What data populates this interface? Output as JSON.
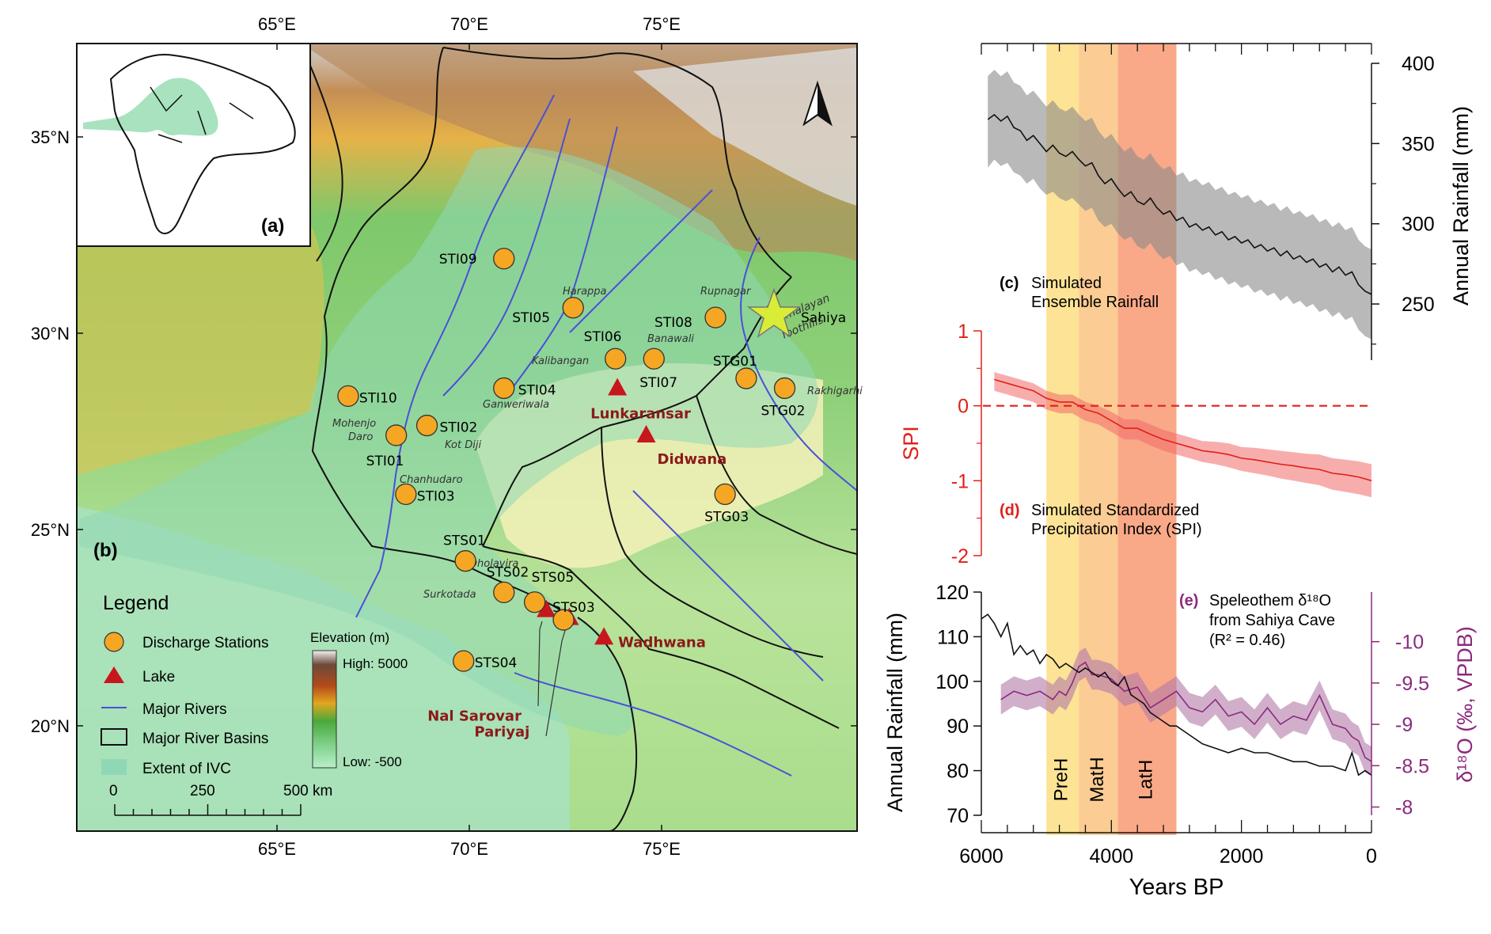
{
  "map": {
    "lon_ticks": [
      {
        "lon": 65,
        "label": "65°E"
      },
      {
        "lon": 70,
        "label": "70°E"
      },
      {
        "lon": 75,
        "label": "75°E"
      }
    ],
    "lat_ticks": [
      {
        "lat": 35,
        "label": "35°N"
      },
      {
        "lat": 30,
        "label": "30°N"
      },
      {
        "lat": 25,
        "label": "25°N"
      },
      {
        "lat": 20,
        "label": "20°N"
      }
    ],
    "panel_a": "(a)",
    "panel_b": "(b)",
    "stations": [
      {
        "id": "STI09",
        "lon": 70.9,
        "lat": 31.9
      },
      {
        "id": "STI05",
        "lon": 72.7,
        "lat": 30.65
      },
      {
        "id": "STI08",
        "lon": 76.4,
        "lat": 30.4
      },
      {
        "id": "STI06",
        "lon": 73.8,
        "lat": 29.35
      },
      {
        "id": "STI07",
        "lon": 74.8,
        "lat": 29.35
      },
      {
        "id": "STG01",
        "lon": 77.2,
        "lat": 28.85
      },
      {
        "id": "STG02",
        "lon": 78.2,
        "lat": 28.6
      },
      {
        "id": "STI04",
        "lon": 70.9,
        "lat": 28.6
      },
      {
        "id": "STI10",
        "lon": 66.85,
        "lat": 28.4
      },
      {
        "id": "STI02",
        "lon": 68.9,
        "lat": 27.65
      },
      {
        "id": "STI01",
        "lon": 68.1,
        "lat": 27.4
      },
      {
        "id": "STI03",
        "lon": 68.35,
        "lat": 25.9
      },
      {
        "id": "STG03",
        "lon": 76.65,
        "lat": 25.9
      },
      {
        "id": "STS01",
        "lon": 69.9,
        "lat": 24.2
      },
      {
        "id": "STS02",
        "lon": 70.9,
        "lat": 23.4
      },
      {
        "id": "STS05",
        "lon": 71.7,
        "lat": 23.15
      },
      {
        "id": "STS03",
        "lon": 72.45,
        "lat": 22.7
      },
      {
        "id": "STS04",
        "lon": 69.85,
        "lat": 21.65
      }
    ],
    "lakes": [
      {
        "name": "Lunkaransar",
        "lon": 73.85,
        "lat": 28.6
      },
      {
        "name": "Didwana",
        "lon": 74.6,
        "lat": 27.4
      },
      {
        "name": "Wadhwana",
        "lon": 73.5,
        "lat": 22.25
      },
      {
        "name": "Nal Sarovar",
        "lon": 72.0,
        "lat": 22.95
      },
      {
        "name": "Pariyaj",
        "lon": 72.6,
        "lat": 22.75
      }
    ],
    "sites": [
      "Harappa",
      "Rupnagar",
      "Banawali",
      "Kalibangan",
      "Ganweriwala",
      "Rakhigarhi",
      "Mohenjo",
      "Daro",
      "Kot Diji",
      "Chanhudaro",
      "Dholavira",
      "Surkotada"
    ],
    "sahiya_label": "Sahiya",
    "foothills_1": "Himalayan",
    "foothills_2": "foothills",
    "legend": {
      "title": "Legend",
      "items": [
        "Discharge Stations",
        "Lake",
        "Major Rivers",
        "Major River Basins",
        "Extent of IVC"
      ],
      "elevation_title": "Elevation (m)",
      "elevation_high": "High: 5000",
      "elevation_low": "Low: -500",
      "scale_labels": [
        "0",
        "250",
        "500 km"
      ]
    },
    "colors": {
      "station": "#F5A623",
      "lake": "#C8161D",
      "river": "#4A50D8",
      "ivc": "#8fd8b7",
      "lake_label": "#8B1A1A"
    }
  },
  "chart_data": [
    {
      "type": "line",
      "panel": "(c)",
      "title_lines": [
        "Simulated",
        "Ensemble Rainfall"
      ],
      "ylabel": "Annual Rainfall (mm)",
      "ylim": [
        215,
        400
      ],
      "yticks": [
        250,
        300,
        350,
        400
      ],
      "x": [
        5900,
        5800,
        5700,
        5600,
        5500,
        5400,
        5300,
        5200,
        5100,
        5000,
        4900,
        4800,
        4700,
        4600,
        4500,
        4400,
        4300,
        4200,
        4100,
        4000,
        3900,
        3800,
        3700,
        3600,
        3500,
        3400,
        3300,
        3200,
        3100,
        3000,
        2900,
        2800,
        2700,
        2600,
        2500,
        2400,
        2300,
        2200,
        2100,
        2000,
        1900,
        1800,
        1700,
        1600,
        1500,
        1400,
        1300,
        1200,
        1100,
        1000,
        900,
        800,
        700,
        600,
        500,
        400,
        300,
        200,
        100,
        0
      ],
      "series": [
        {
          "values": [
            365,
            368,
            364,
            367,
            360,
            358,
            352,
            355,
            350,
            345,
            349,
            344,
            342,
            345,
            340,
            336,
            338,
            330,
            325,
            328,
            322,
            317,
            320,
            314,
            312,
            316,
            310,
            306,
            308,
            302,
            304,
            298,
            300,
            296,
            298,
            293,
            295,
            290,
            292,
            288,
            290,
            285,
            287,
            283,
            285,
            280,
            283,
            278,
            280,
            276,
            278,
            273,
            275,
            270,
            273,
            268,
            270,
            262,
            258,
            256
          ],
          "lower": [
            335,
            340,
            336,
            338,
            332,
            330,
            325,
            328,
            322,
            318,
            320,
            316,
            314,
            316,
            312,
            308,
            310,
            302,
            298,
            300,
            294,
            290,
            292,
            286,
            284,
            288,
            282,
            278,
            280,
            274,
            276,
            270,
            272,
            268,
            270,
            265,
            267,
            262,
            264,
            260,
            262,
            257,
            259,
            255,
            257,
            252,
            255,
            250,
            252,
            248,
            250,
            245,
            247,
            242,
            245,
            240,
            242,
            234,
            230,
            228
          ],
          "upper": [
            392,
            396,
            392,
            395,
            388,
            386,
            380,
            383,
            378,
            373,
            377,
            372,
            370,
            373,
            368,
            364,
            366,
            358,
            353,
            356,
            350,
            345,
            348,
            342,
            340,
            344,
            338,
            334,
            336,
            330,
            332,
            326,
            328,
            324,
            326,
            321,
            323,
            318,
            320,
            316,
            318,
            313,
            315,
            311,
            313,
            308,
            311,
            306,
            308,
            304,
            306,
            301,
            303,
            298,
            301,
            296,
            298,
            290,
            286,
            284
          ]
        }
      ]
    },
    {
      "type": "line",
      "panel": "(d)",
      "title_lines": [
        "Simulated Standardized",
        "Precipitation Index (SPI)"
      ],
      "ylabel": "SPI",
      "ylim": [
        -2,
        1
      ],
      "yticks": [
        -2,
        -1,
        0,
        1
      ],
      "x": [
        5800,
        5600,
        5400,
        5200,
        5000,
        4800,
        4600,
        4400,
        4200,
        4000,
        3800,
        3600,
        3400,
        3200,
        3000,
        2800,
        2600,
        2400,
        2200,
        2000,
        1800,
        1600,
        1400,
        1200,
        1000,
        800,
        600,
        400,
        200,
        0
      ],
      "series": [
        {
          "values": [
            0.35,
            0.3,
            0.25,
            0.2,
            0.1,
            0.05,
            0.05,
            -0.05,
            -0.1,
            -0.2,
            -0.3,
            -0.3,
            -0.38,
            -0.45,
            -0.5,
            -0.55,
            -0.6,
            -0.62,
            -0.65,
            -0.7,
            -0.72,
            -0.75,
            -0.78,
            -0.8,
            -0.83,
            -0.85,
            -0.9,
            -0.92,
            -0.95,
            -1.0
          ],
          "lower": [
            0.2,
            0.15,
            0.1,
            0.05,
            -0.05,
            -0.1,
            -0.1,
            -0.2,
            -0.25,
            -0.35,
            -0.45,
            -0.45,
            -0.53,
            -0.6,
            -0.65,
            -0.7,
            -0.75,
            -0.78,
            -0.82,
            -0.87,
            -0.9,
            -0.93,
            -0.97,
            -1.0,
            -1.03,
            -1.06,
            -1.12,
            -1.15,
            -1.18,
            -1.22
          ],
          "upper": [
            0.45,
            0.4,
            0.35,
            0.3,
            0.2,
            0.15,
            0.15,
            0.05,
            0.0,
            -0.08,
            -0.18,
            -0.18,
            -0.25,
            -0.32,
            -0.37,
            -0.42,
            -0.47,
            -0.48,
            -0.5,
            -0.55,
            -0.56,
            -0.58,
            -0.6,
            -0.62,
            -0.64,
            -0.65,
            -0.7,
            -0.72,
            -0.74,
            -0.78
          ]
        }
      ],
      "reference_line": 0
    },
    {
      "type": "line",
      "panel": "(e)",
      "title_lines": [
        "Speleothem δ¹⁸O",
        "from Sahiya Cave",
        "(R² = 0.46)"
      ],
      "ylabel_left": "Annual Rainfall (mm)",
      "ylabel_right": "δ¹⁸O (‰, VPDB)",
      "ylim_left": [
        70,
        120
      ],
      "yticks_left": [
        70,
        80,
        90,
        100,
        110,
        120
      ],
      "ylim_right": [
        -7.9,
        -10.6
      ],
      "yticks_right": [
        -8,
        -8.5,
        -9,
        -9.5,
        -10
      ],
      "ytick_labels_right": [
        "-8",
        "-8.5",
        "-9",
        "-9.5",
        "-10"
      ],
      "series_rainfall": {
        "x": [
          6000,
          5900,
          5800,
          5700,
          5600,
          5500,
          5400,
          5300,
          5200,
          5100,
          5000,
          4900,
          4800,
          4700,
          4600,
          4500,
          4400,
          4300,
          4200,
          4100,
          4000,
          3900,
          3800,
          3700,
          3600,
          3500,
          3400,
          3300,
          3200,
          3100,
          3000,
          2800,
          2600,
          2400,
          2200,
          2000,
          1800,
          1600,
          1400,
          1200,
          1000,
          800,
          600,
          400,
          300,
          200,
          100,
          0
        ],
        "values": [
          114,
          115,
          113,
          110,
          113,
          106,
          108,
          106,
          107,
          104,
          106,
          105,
          103,
          104,
          103,
          102,
          103,
          102,
          101,
          102,
          100,
          99,
          101,
          97,
          96,
          95,
          93,
          92,
          91,
          90,
          90,
          88,
          86,
          85,
          84,
          85,
          84,
          84,
          83,
          82,
          82,
          81,
          81,
          80,
          84,
          79,
          80,
          79
        ]
      },
      "series_d18o": {
        "x": [
          5700,
          5500,
          5300,
          5100,
          5000,
          4900,
          4800,
          4700,
          4600,
          4500,
          4400,
          4300,
          4200,
          4000,
          3800,
          3600,
          3400,
          3200,
          3000,
          2800,
          2600,
          2400,
          2200,
          2000,
          1800,
          1600,
          1400,
          1200,
          1000,
          800,
          600,
          400,
          300,
          200,
          100,
          0
        ],
        "values": [
          -9.3,
          -9.4,
          -9.35,
          -9.4,
          -9.35,
          -9.3,
          -9.4,
          -9.35,
          -9.5,
          -9.7,
          -9.75,
          -9.6,
          -9.6,
          -9.55,
          -9.4,
          -9.45,
          -9.2,
          -9.3,
          -9.4,
          -9.2,
          -9.15,
          -9.3,
          -9.1,
          -9.15,
          -9.0,
          -9.2,
          -9.0,
          -9.1,
          -9.05,
          -9.35,
          -9.0,
          -8.95,
          -8.85,
          -8.8,
          -8.6,
          -8.55
        ],
        "band": 0.18
      },
      "colors": {
        "rainfall": "#111111",
        "d18o": "#8B2A7E",
        "band": "#b27aa8"
      }
    }
  ],
  "time_axis": {
    "xlabel": "Years BP",
    "xlim": [
      6000,
      0
    ],
    "xticks": [
      6000,
      4000,
      2000,
      0
    ],
    "xtick_labels": [
      "6000",
      "4000",
      "2000",
      "0"
    ]
  },
  "phases": [
    {
      "label": "PreH",
      "from": 5000,
      "to": 4500,
      "color": "#FDE08A"
    },
    {
      "label": "MatH",
      "from": 4500,
      "to": 3900,
      "color": "#FBC687"
    },
    {
      "label": "LatH",
      "from": 3900,
      "to": 3000,
      "color": "#F8A07A"
    }
  ]
}
